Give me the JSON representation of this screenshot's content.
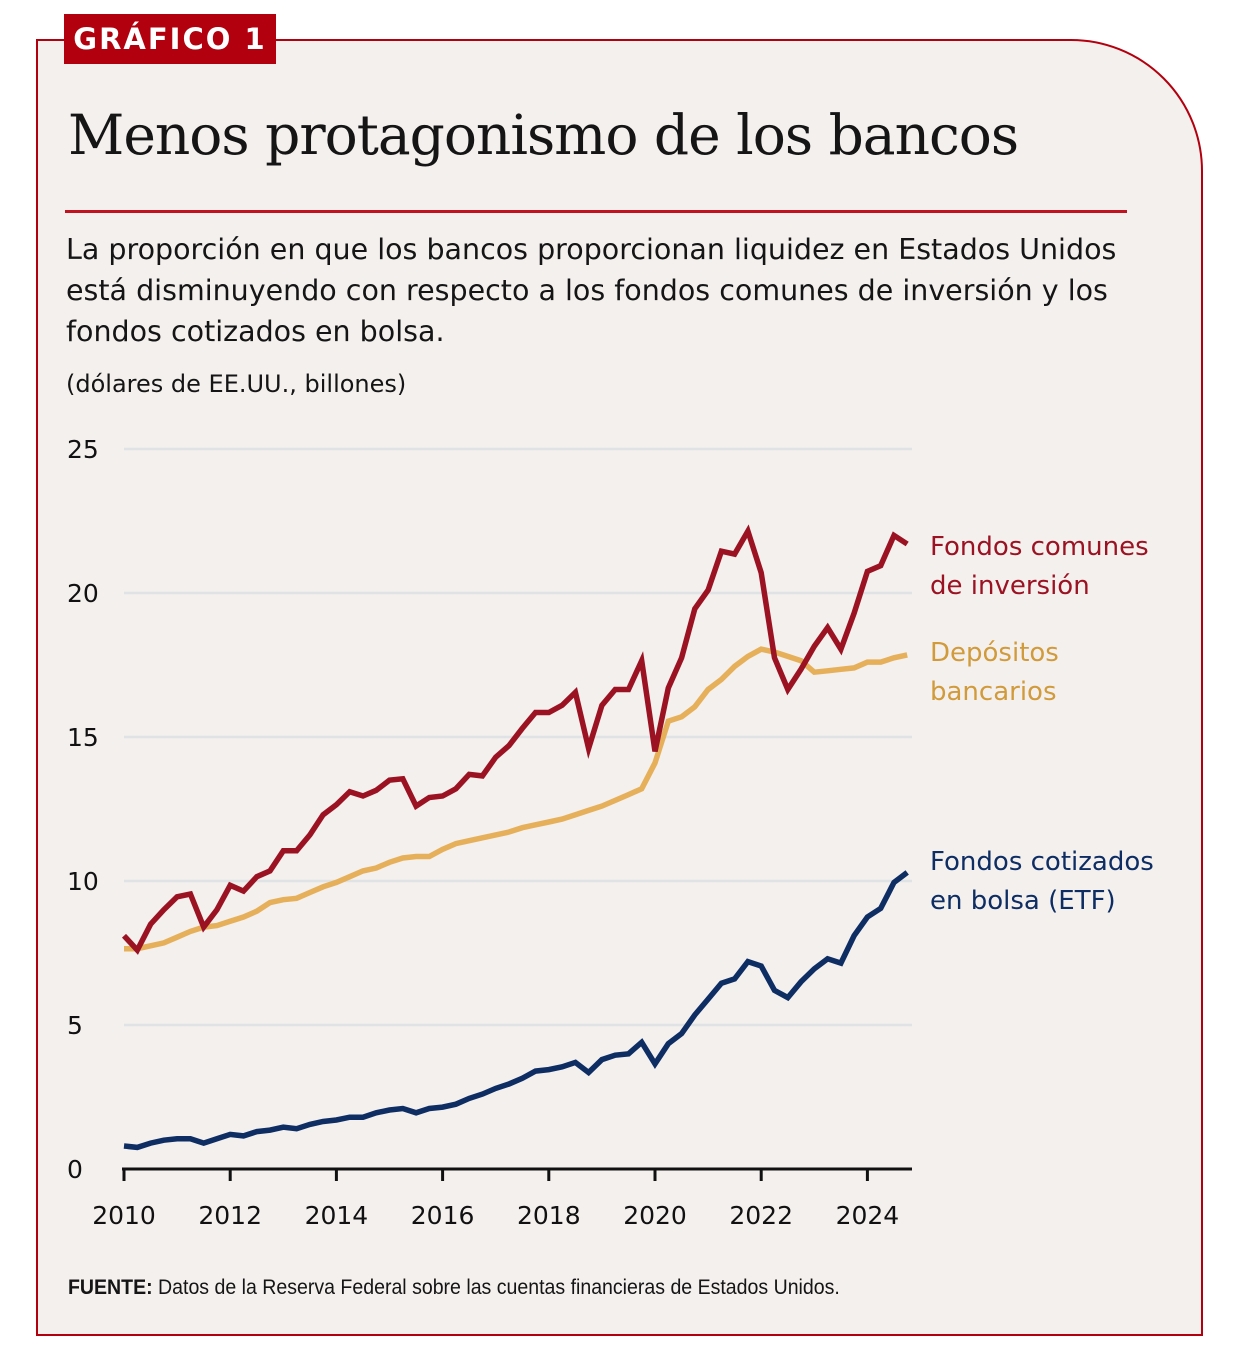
{
  "tag": "GRÁFICO 1",
  "title": "Menos protagonismo de los bancos",
  "subtitle": "La proporción en que los bancos proporcionan liquidez en Estados Unidos está disminuyendo con respecto a los fondos comunes de inversión y los fondos cotizados en bolsa.",
  "units": "(dólares de EE.UU., billones)",
  "source": {
    "label": "FUENTE:",
    "text": " Datos de la Reserva Federal sobre las cuentas financieras de Estados Unidos."
  },
  "colors": {
    "brand": "#b3000f",
    "mutual_funds": "#9b1323",
    "bank_deposits": "#e6b05a",
    "etf": "#0d2d63",
    "grid": "#dfe3e5",
    "background": "#f4f0ee"
  },
  "chart_data": {
    "type": "line",
    "title": "Menos protagonismo de los bancos",
    "xlabel": "",
    "ylabel": "(dólares de EE.UU., billones)",
    "xlim": [
      2010,
      2024.85
    ],
    "ylim": [
      0,
      25
    ],
    "yticks": [
      0,
      5,
      10,
      15,
      20,
      25
    ],
    "xticks": [
      2010,
      2012,
      2014,
      2016,
      2018,
      2020,
      2022,
      2024
    ],
    "xtick_labels": [
      "2010",
      "2012",
      "2014",
      "2016",
      "2018",
      "2020",
      "2022",
      "2024"
    ],
    "ytick_labels": [
      "0",
      "5",
      "10",
      "15",
      "20",
      "25"
    ],
    "grid": true,
    "legend": "inline-right",
    "x_start": 2010,
    "x_step": 0.25,
    "series": [
      {
        "name": "Fondos comunes de inversión",
        "label_lines": [
          "Fondos comunes",
          "de inversión"
        ],
        "color_key": "mutual_funds",
        "values": [
          8.1,
          7.6,
          8.5,
          9.0,
          9.45,
          9.55,
          8.4,
          9.0,
          9.85,
          9.65,
          10.15,
          10.35,
          11.05,
          11.05,
          11.6,
          12.3,
          12.65,
          13.1,
          12.95,
          13.15,
          13.5,
          13.55,
          12.6,
          12.9,
          12.95,
          13.2,
          13.7,
          13.65,
          14.3,
          14.7,
          15.3,
          15.85,
          15.85,
          16.1,
          16.55,
          14.6,
          16.1,
          16.65,
          16.65,
          17.65,
          14.5,
          16.7,
          17.75,
          19.45,
          20.1,
          21.45,
          21.35,
          22.15,
          20.7,
          17.75,
          16.65,
          17.35,
          18.15,
          18.8,
          18.05,
          19.3,
          20.75,
          20.95,
          22.0,
          21.7
        ]
      },
      {
        "name": "Depósitos bancarios",
        "label_lines": [
          "Depósitos",
          "bancarios"
        ],
        "color_key": "bank_deposits",
        "values": [
          7.65,
          7.65,
          7.75,
          7.85,
          8.05,
          8.25,
          8.4,
          8.45,
          8.6,
          8.75,
          8.95,
          9.25,
          9.35,
          9.4,
          9.6,
          9.8,
          9.95,
          10.15,
          10.35,
          10.45,
          10.65,
          10.8,
          10.85,
          10.85,
          11.1,
          11.3,
          11.4,
          11.5,
          11.6,
          11.7,
          11.85,
          11.95,
          12.05,
          12.15,
          12.3,
          12.45,
          12.6,
          12.8,
          13.0,
          13.2,
          14.1,
          15.55,
          15.7,
          16.05,
          16.65,
          17.0,
          17.45,
          17.8,
          18.05,
          17.95,
          17.8,
          17.65,
          17.25,
          17.3,
          17.35,
          17.4,
          17.6,
          17.6,
          17.75,
          17.85
        ]
      },
      {
        "name": "Fondos cotizados en bolsa (ETF)",
        "label_lines": [
          "Fondos cotizados",
          "en bolsa (ETF)"
        ],
        "color_key": "etf",
        "values": [
          0.8,
          0.75,
          0.9,
          1.0,
          1.05,
          1.05,
          0.9,
          1.05,
          1.2,
          1.15,
          1.3,
          1.35,
          1.45,
          1.4,
          1.55,
          1.65,
          1.7,
          1.8,
          1.8,
          1.95,
          2.05,
          2.1,
          1.95,
          2.1,
          2.15,
          2.25,
          2.45,
          2.6,
          2.8,
          2.95,
          3.15,
          3.4,
          3.45,
          3.55,
          3.7,
          3.35,
          3.8,
          3.95,
          4.0,
          4.4,
          3.65,
          4.35,
          4.7,
          5.35,
          5.9,
          6.45,
          6.6,
          7.2,
          7.05,
          6.2,
          5.95,
          6.5,
          6.95,
          7.3,
          7.15,
          8.1,
          8.75,
          9.05,
          9.95,
          10.3
        ]
      }
    ]
  }
}
